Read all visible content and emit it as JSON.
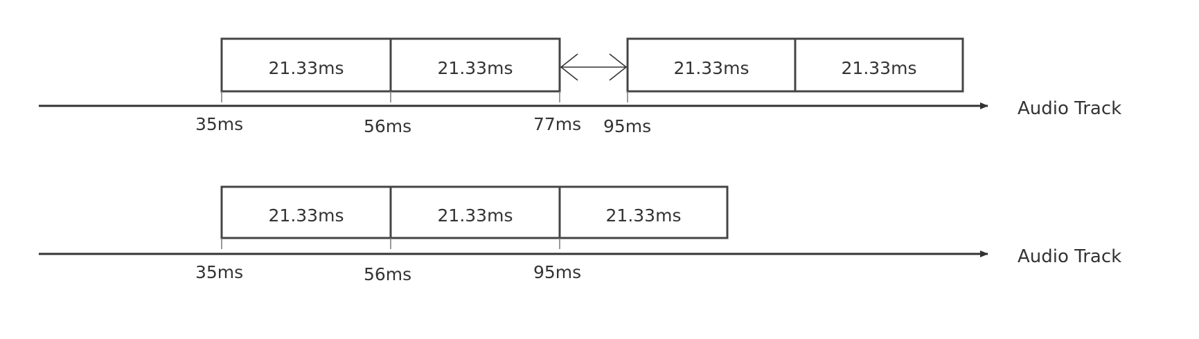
{
  "colors": {
    "default_text": "#333333",
    "highlight": "#e53935",
    "box_stroke": "#444444"
  },
  "tracks": [
    {
      "frames": [
        "21.33ms",
        "21.33ms",
        "21.33ms",
        "21.33ms"
      ],
      "ticks": [
        {
          "label": "35ms",
          "highlight": false
        },
        {
          "label": "56ms",
          "highlight": false
        },
        {
          "label": "77ms",
          "highlight": true
        },
        {
          "label": "95ms",
          "highlight": false
        }
      ],
      "label": "Audio Track",
      "gap_arrow": "double-headed-arrow"
    },
    {
      "frames": [
        "21.33ms",
        "21.33ms",
        "21.33ms"
      ],
      "ticks": [
        {
          "label": "35ms",
          "highlight": false
        },
        {
          "label": "56ms",
          "highlight": false
        },
        {
          "label": "95ms",
          "highlight": false
        }
      ],
      "label": "Audio Track"
    }
  ]
}
